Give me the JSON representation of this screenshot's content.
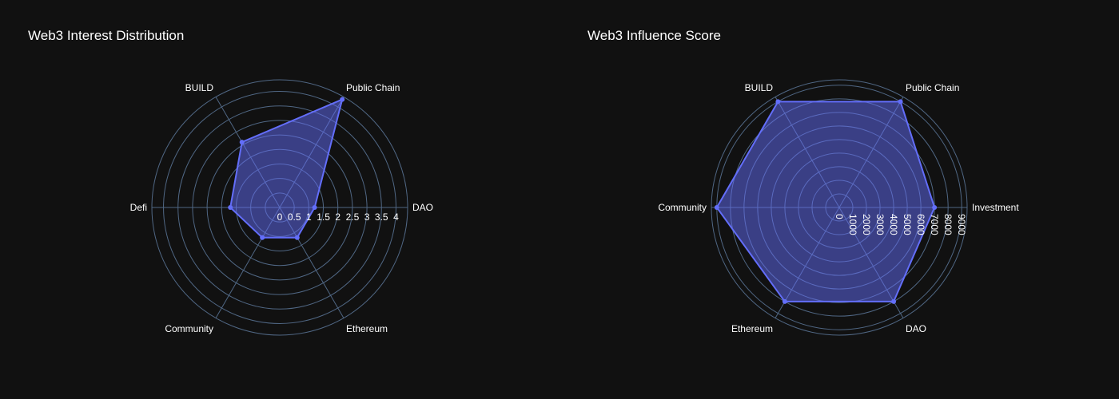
{
  "chart_data": [
    {
      "type": "radar",
      "title": "Web3 Interest Distribution",
      "categories": [
        "DAO",
        "Public Chain",
        "BUILD",
        "Defi",
        "Community",
        "Ethereum"
      ],
      "values": [
        1.2,
        4.3,
        2.6,
        1.7,
        1.2,
        1.2
      ],
      "radial_range": [
        0,
        4.4
      ],
      "radial_ticks": [
        "0",
        "0.5",
        "1",
        "1.5",
        "2",
        "2.5",
        "3",
        "3.5",
        "4"
      ],
      "radial_tick_values": [
        0,
        0.5,
        1,
        1.5,
        2,
        2.5,
        3,
        3.5,
        4
      ],
      "colors": {
        "line": "#636efa",
        "fill": "#636efa",
        "grid": "#506784",
        "text": "#ffffff"
      }
    },
    {
      "type": "radar",
      "title": "Web3 Influence Score",
      "categories": [
        "Investment",
        "Public Chain",
        "BUILD",
        "Community",
        "Ethereum",
        "DAO"
      ],
      "values": [
        7000,
        9000,
        9000,
        9000,
        8000,
        8000
      ],
      "radial_range": [
        0,
        9400
      ],
      "radial_ticks": [
        "0",
        "1000",
        "2000",
        "3000",
        "4000",
        "5000",
        "6000",
        "7000",
        "8000",
        "9000"
      ],
      "radial_tick_values": [
        0,
        1000,
        2000,
        3000,
        4000,
        5000,
        6000,
        7000,
        8000,
        9000
      ],
      "colors": {
        "line": "#636efa",
        "fill": "#636efa",
        "grid": "#506784",
        "text": "#ffffff"
      }
    }
  ]
}
